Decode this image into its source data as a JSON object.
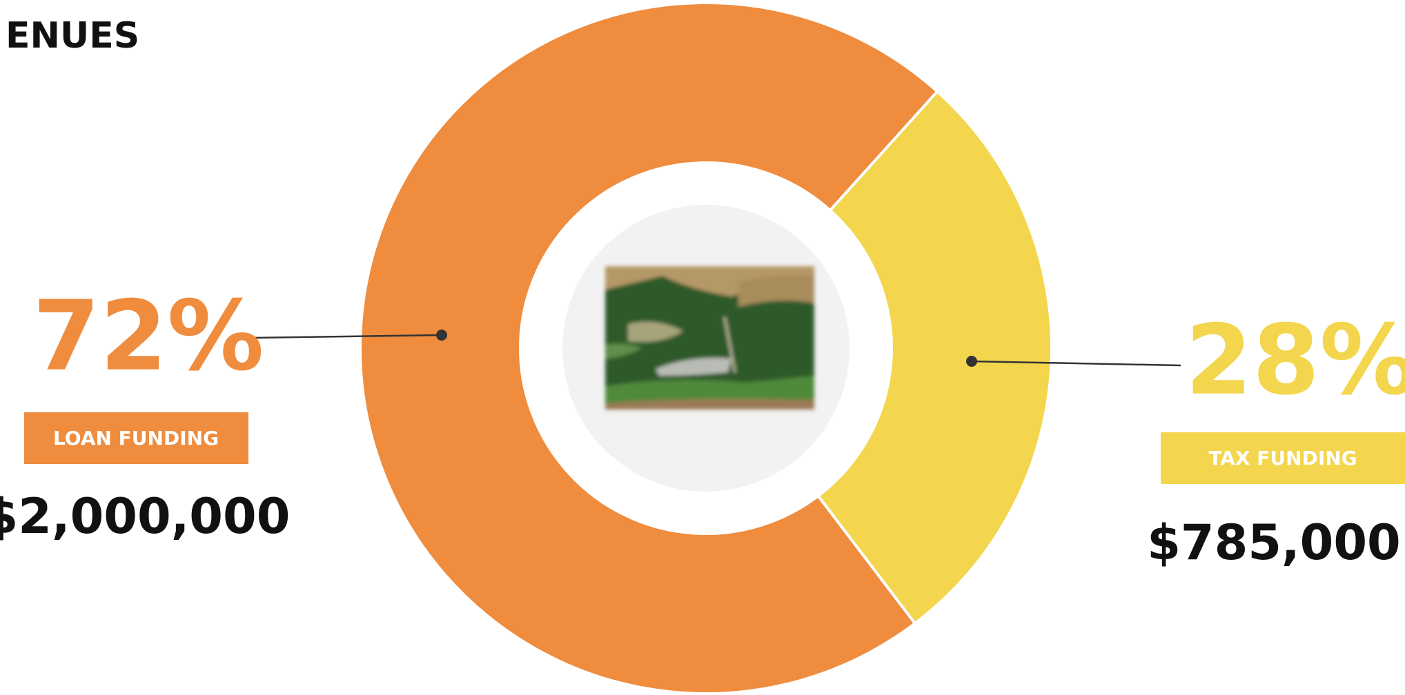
{
  "chart_data": {
    "type": "donut",
    "title": "ENUES",
    "categories": [
      "LOAN FUNDING",
      "TAX FUNDING"
    ],
    "values": [
      72,
      28
    ],
    "value_labels": [
      "72%",
      "28%"
    ],
    "colors": [
      "#ef8c3e",
      "#f3d64e"
    ],
    "amounts": [
      2000000,
      785000
    ],
    "amount_labels": [
      "$2,000,000",
      "$785,000"
    ]
  }
}
